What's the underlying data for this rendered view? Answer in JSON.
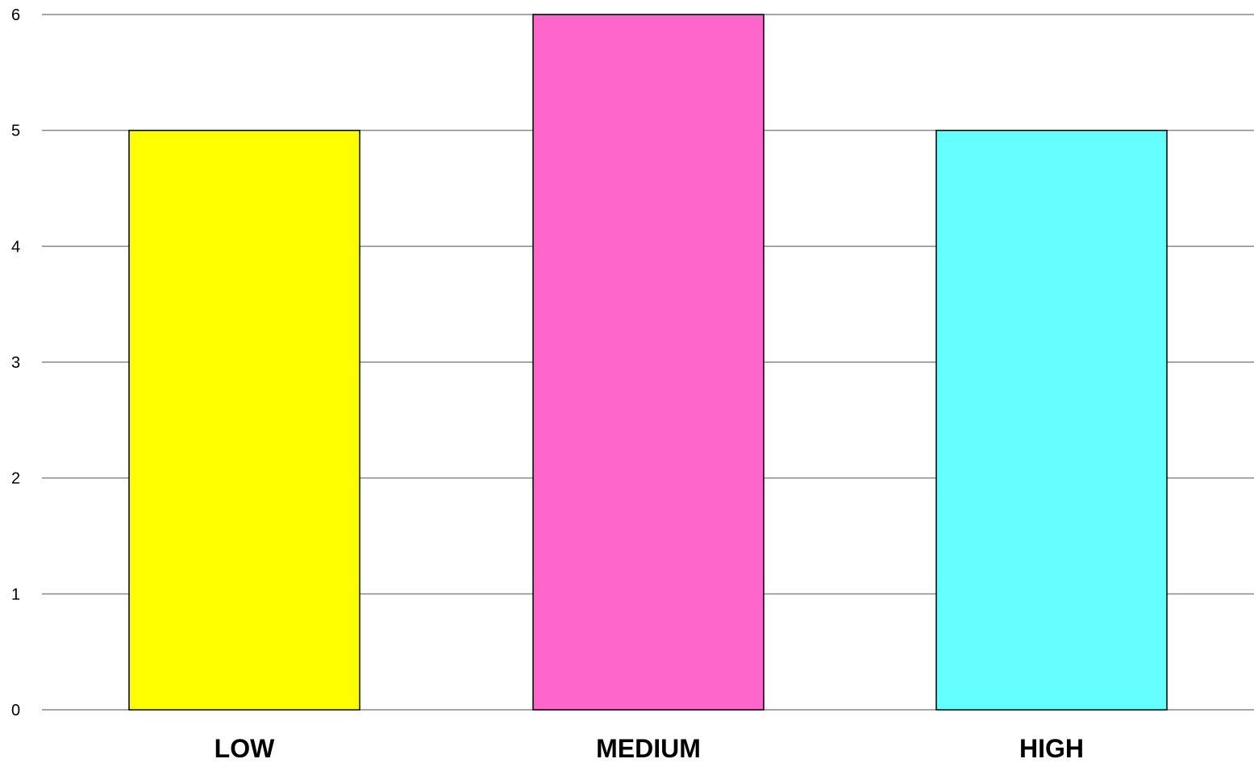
{
  "chart_data": {
    "type": "bar",
    "title": "",
    "xlabel": "",
    "ylabel": "",
    "categories": [
      "LOW",
      "MEDIUM",
      "HIGH"
    ],
    "values": [
      5,
      6,
      5
    ],
    "colors": [
      "#ffff00",
      "#ff66cc",
      "#66ffff"
    ],
    "ylim": [
      0,
      6
    ],
    "yticks": [
      "0",
      "1",
      "2",
      "3",
      "4",
      "5",
      "6"
    ],
    "grid": true,
    "legend": "none"
  }
}
